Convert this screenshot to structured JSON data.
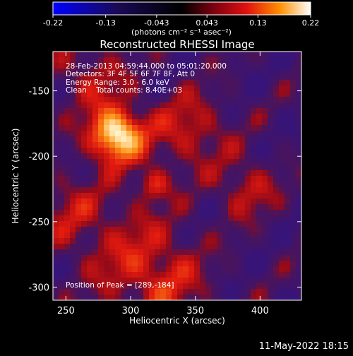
{
  "chart_data": {
    "type": "heatmap",
    "title": "Reconstructed RHESSI Image",
    "xlabel": "Heliocentric X (arcsec)",
    "ylabel": "Heliocentric Y (arcsec)",
    "xlim": [
      240,
      432
    ],
    "ylim": [
      -310,
      -120
    ],
    "x_ticks": [
      250,
      300,
      350,
      400
    ],
    "y_ticks": [
      -150,
      -200,
      -250,
      -300
    ],
    "colorbar": {
      "min": -0.22,
      "max": 0.22,
      "tick_values": [
        -0.22,
        -0.13,
        -0.043,
        0.043,
        0.13,
        0.22
      ],
      "tick_labels": [
        "-0.22",
        "-0.13",
        "-0.043",
        "0.043",
        "0.13",
        "0.22"
      ],
      "units_label": "(photons cm⁻² s⁻¹ asec⁻²)"
    },
    "annotations": {
      "time": "28-Feb-2013 04:59:44.000 to 05:01:20.000",
      "detectors": "Detectors: 3F 4F 5F 6F 7F 8F, Att 0",
      "energy": "Energy Range: 3.0 - 6.0 keV",
      "clean": "Clean    Total counts: 8.40E+03",
      "peak": "Position of Peak = [289,-184]"
    },
    "peak": [
      289,
      -184
    ],
    "colors": {
      "background": "#000000",
      "low": "#3a1a8c",
      "mid": "#c81414",
      "high": "#ffffe0"
    }
  },
  "footer": {
    "timestamp": "11-May-2022 18:15"
  }
}
